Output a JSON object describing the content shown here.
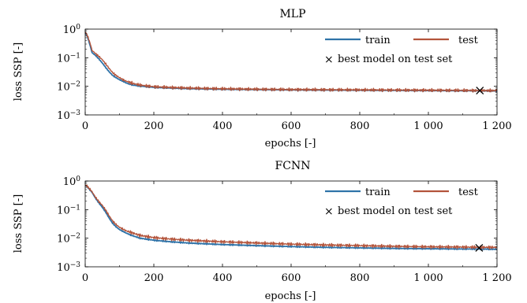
{
  "chart_data": [
    {
      "type": "line",
      "title": "MLP",
      "xlabel": "epochs [-]",
      "ylabel": "loss SSP [-]",
      "xlim": [
        0,
        1200
      ],
      "ylim": [
        0.001,
        1
      ],
      "yscale": "log",
      "grid": false,
      "legend_position": "top-right",
      "x_ticks": [
        0,
        200,
        400,
        600,
        800,
        1000,
        1200
      ],
      "x_tick_labels": [
        "0",
        "200",
        "400",
        "600",
        "800",
        "1 000",
        "1 200"
      ],
      "y_ticks": [
        0.001,
        0.01,
        0.1,
        1
      ],
      "series": [
        {
          "name": "train",
          "color": "#2f73a8",
          "x": [
            0,
            5,
            10,
            15,
            20,
            30,
            40,
            50,
            60,
            70,
            80,
            90,
            100,
            110,
            120,
            140,
            160,
            200,
            250,
            300,
            400,
            500,
            600,
            700,
            800,
            900,
            1000,
            1100,
            1150,
            1200
          ],
          "y": [
            0.75,
            0.6,
            0.4,
            0.25,
            0.15,
            0.12,
            0.09,
            0.065,
            0.045,
            0.032,
            0.024,
            0.02,
            0.017,
            0.015,
            0.013,
            0.011,
            0.0102,
            0.0092,
            0.0087,
            0.0083,
            0.0079,
            0.0077,
            0.0075,
            0.0074,
            0.0073,
            0.0072,
            0.0071,
            0.007,
            0.007,
            0.0069
          ]
        },
        {
          "name": "test",
          "color": "#b3543b",
          "x": [
            0,
            5,
            10,
            15,
            20,
            30,
            40,
            50,
            60,
            70,
            80,
            90,
            100,
            110,
            120,
            140,
            160,
            200,
            250,
            300,
            400,
            500,
            600,
            700,
            800,
            900,
            1000,
            1100,
            1150,
            1200
          ],
          "y": [
            0.8,
            0.65,
            0.45,
            0.3,
            0.18,
            0.14,
            0.11,
            0.085,
            0.06,
            0.042,
            0.03,
            0.024,
            0.02,
            0.017,
            0.015,
            0.0125,
            0.011,
            0.0097,
            0.0091,
            0.0087,
            0.0082,
            0.0079,
            0.0077,
            0.0076,
            0.0075,
            0.0074,
            0.0073,
            0.0072,
            0.0071,
            0.0071
          ]
        }
      ],
      "marker": {
        "label": "best model on test set",
        "symbol": "×",
        "x": 1150,
        "y": 0.0071
      }
    },
    {
      "type": "line",
      "title": "FCNN",
      "xlabel": "epochs [-]",
      "ylabel": "loss SSP [-]",
      "xlim": [
        0,
        1200
      ],
      "ylim": [
        0.001,
        1
      ],
      "yscale": "log",
      "grid": false,
      "legend_position": "top-right",
      "x_ticks": [
        0,
        200,
        400,
        600,
        800,
        1000,
        1200
      ],
      "x_tick_labels": [
        "0",
        "200",
        "400",
        "600",
        "800",
        "1 000",
        "1 200"
      ],
      "y_ticks": [
        0.001,
        0.01,
        0.1,
        1
      ],
      "series": [
        {
          "name": "train",
          "color": "#2f73a8",
          "x": [
            0,
            5,
            10,
            20,
            30,
            40,
            50,
            60,
            70,
            80,
            90,
            100,
            120,
            140,
            160,
            200,
            250,
            300,
            400,
            500,
            600,
            700,
            800,
            900,
            1000,
            1100,
            1150,
            1200
          ],
          "y": [
            0.7,
            0.65,
            0.55,
            0.4,
            0.25,
            0.17,
            0.12,
            0.08,
            0.05,
            0.033,
            0.025,
            0.02,
            0.015,
            0.012,
            0.01,
            0.0085,
            0.0075,
            0.0068,
            0.006,
            0.0055,
            0.0051,
            0.0048,
            0.0046,
            0.0044,
            0.0043,
            0.0042,
            0.0042,
            0.0041
          ]
        },
        {
          "name": "test",
          "color": "#b3543b",
          "x": [
            0,
            5,
            10,
            20,
            30,
            40,
            50,
            60,
            70,
            80,
            90,
            100,
            120,
            140,
            160,
            200,
            250,
            300,
            400,
            500,
            600,
            700,
            800,
            900,
            1000,
            1100,
            1150,
            1200
          ],
          "y": [
            0.72,
            0.68,
            0.58,
            0.42,
            0.27,
            0.19,
            0.14,
            0.095,
            0.06,
            0.04,
            0.03,
            0.024,
            0.018,
            0.015,
            0.0125,
            0.0105,
            0.0093,
            0.0085,
            0.0075,
            0.0068,
            0.0062,
            0.0058,
            0.0055,
            0.0052,
            0.005,
            0.0049,
            0.0048,
            0.0048
          ]
        }
      ],
      "marker": {
        "label": "best model on test set",
        "symbol": "×",
        "x": 1148,
        "y": 0.0046
      }
    }
  ]
}
